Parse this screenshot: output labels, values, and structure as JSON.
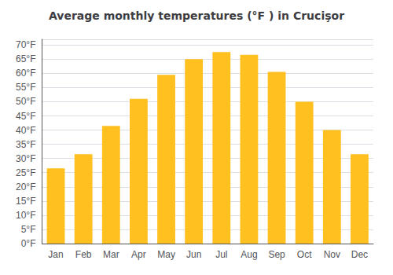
{
  "chart_data": {
    "type": "bar",
    "title": "Average monthly temperatures (°F ) in Crucişor",
    "categories": [
      "Jan",
      "Feb",
      "Mar",
      "Apr",
      "May",
      "Jun",
      "Jul",
      "Aug",
      "Sep",
      "Oct",
      "Nov",
      "Dec"
    ],
    "values": [
      26.5,
      31.5,
      41.5,
      51.0,
      59.5,
      65.0,
      67.5,
      66.5,
      60.5,
      50.0,
      40.0,
      31.5
    ],
    "color": "#FFC020",
    "ylim": [
      0,
      72
    ],
    "yticks": [
      {
        "value": 0,
        "label": "0°F"
      },
      {
        "value": 5,
        "label": "5°F"
      },
      {
        "value": 10,
        "label": "10°F"
      },
      {
        "value": 15,
        "label": "15°F"
      },
      {
        "value": 20,
        "label": "20°F"
      },
      {
        "value": 25,
        "label": "25°F"
      },
      {
        "value": 30,
        "label": "30°F"
      },
      {
        "value": 35,
        "label": "35°F"
      },
      {
        "value": 40,
        "label": "40°F"
      },
      {
        "value": 45,
        "label": "45°F"
      },
      {
        "value": 50,
        "label": "50°F"
      },
      {
        "value": 55,
        "label": "55°F"
      },
      {
        "value": 60,
        "label": "60°F"
      },
      {
        "value": 65,
        "label": "65°F"
      },
      {
        "value": 70,
        "label": "70°F"
      }
    ],
    "grid": true
  }
}
